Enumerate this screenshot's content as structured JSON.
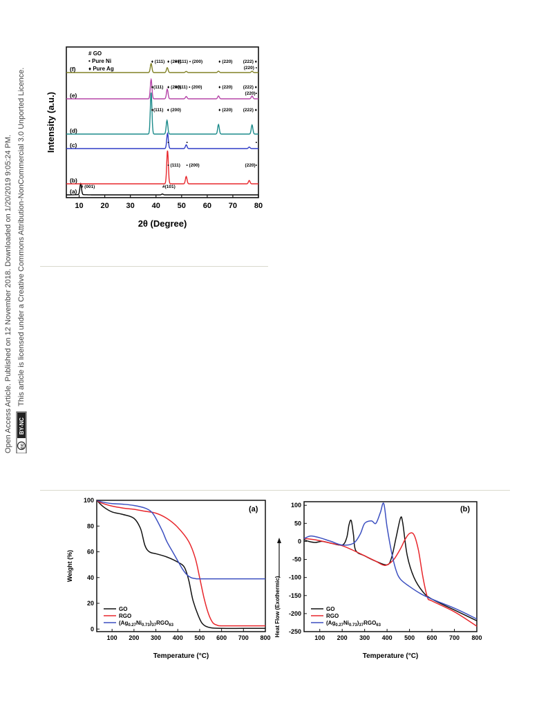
{
  "side_text": {
    "line1": "Open Access Article. Published on 12 November 2018. Downloaded on 1/20/2019 9:05:24 PM.",
    "line2": "This article is licensed under a Creative Commons Attribution-NonCommercial 3.0 Unported Licence.",
    "badge": "BY-NC"
  },
  "chart_data": [
    {
      "type": "line",
      "xlabel": "2θ (Degree)",
      "ylabel": "Intensity (a.u.)",
      "xlim": [
        5,
        80
      ],
      "xticks": [
        10,
        20,
        30,
        40,
        50,
        60,
        70,
        80
      ],
      "legend": [
        {
          "marker": "#",
          "label": "GO"
        },
        {
          "marker": "•",
          "label": "Pure Ni"
        },
        {
          "marker": "♦",
          "label": "Pure Ag"
        }
      ],
      "colors": {
        "a": "#000000",
        "b": "#e8262b",
        "c": "#2e3bc6",
        "d": "#1a8a8a",
        "e": "#b545a8",
        "f": "#808025"
      },
      "series": [
        {
          "name": "(a)",
          "peaks": [
            {
              "x": 10.6,
              "h": 1.0
            },
            {
              "x": 42.5,
              "h": 0.08
            }
          ],
          "labels": [
            {
              "text": "# (001)",
              "x": 10.6
            },
            {
              "text": "#(101)",
              "x": 42.5
            }
          ]
        },
        {
          "name": "(b)",
          "peaks": [
            {
              "x": 44.5,
              "h": 1.0
            },
            {
              "x": 51.8,
              "h": 0.22
            },
            {
              "x": 76.4,
              "h": 0.1
            }
          ],
          "labels": [
            {
              "text": "• (111)",
              "x": 44.5
            },
            {
              "text": "• (200)",
              "x": 51.8
            },
            {
              "text": "(220)•",
              "x": 76.4
            }
          ]
        },
        {
          "name": "(c)",
          "peaks": [
            {
              "x": 44.5,
              "h": 1.0
            },
            {
              "x": 51.8,
              "h": 0.25
            },
            {
              "x": 76.4,
              "h": 0.1
            }
          ],
          "labels": [
            {
              "text": "•",
              "x": 44.5
            },
            {
              "text": "•",
              "x": 51.8
            },
            {
              "text": "•",
              "x": 76.4
            }
          ]
        },
        {
          "name": "(d)",
          "peaks": [
            {
              "x": 38.1,
              "h": 1.0
            },
            {
              "x": 44.3,
              "h": 0.33
            },
            {
              "x": 64.4,
              "h": 0.23
            },
            {
              "x": 77.5,
              "h": 0.22
            }
          ],
          "labels": [
            {
              "text": "♦(111)",
              "x": 38.1
            },
            {
              "text": "♦ (200)",
              "x": 44.3
            },
            {
              "text": "♦ (220)",
              "x": 64.4
            },
            {
              "text": "(222) ♦",
              "x": 77.5
            }
          ]
        },
        {
          "name": "(e)",
          "peaks": [
            {
              "x": 38.1,
              "h": 1.0
            },
            {
              "x": 44.4,
              "h": 0.5
            },
            {
              "x": 51.8,
              "h": 0.12
            },
            {
              "x": 64.4,
              "h": 0.15
            },
            {
              "x": 77.5,
              "h": 0.15
            }
          ],
          "labels": [
            {
              "text": "♦(111)",
              "x": 38.1
            },
            {
              "text": "♦ (200)",
              "x": 44.4
            },
            {
              "text": "♦(111) • (200)",
              "x": 47.5
            },
            {
              "text": "♦ (220)",
              "x": 64.4
            },
            {
              "text": "(222) ♦",
              "x": 77.5
            },
            {
              "text": "(220)•",
              "x": 77.5
            }
          ]
        },
        {
          "name": "(f)",
          "peaks": [
            {
              "x": 38.1,
              "h": 1.0
            },
            {
              "x": 44.4,
              "h": 0.55
            },
            {
              "x": 51.8,
              "h": 0.13
            },
            {
              "x": 64.4,
              "h": 0.15
            },
            {
              "x": 77.5,
              "h": 0.15
            }
          ],
          "labels": [
            {
              "text": "♦ (111)",
              "x": 38.1
            },
            {
              "text": "♦ (200)",
              "x": 44.4
            },
            {
              "text": "• (111) • (200)",
              "x": 47.5
            },
            {
              "text": "♦ (220)",
              "x": 64.4
            },
            {
              "text": "(222) ♦",
              "x": 77.5
            },
            {
              "text": "(220) •",
              "x": 77.5
            }
          ]
        }
      ]
    },
    {
      "type": "line",
      "panel_label": "(a)",
      "xlabel": "Temperature (°C)",
      "ylabel": "Weight (%)",
      "xlim": [
        30,
        800
      ],
      "ylim": [
        -2,
        100
      ],
      "xticks": [
        100,
        200,
        300,
        400,
        500,
        600,
        700,
        800
      ],
      "yticks": [
        0,
        20,
        40,
        60,
        80,
        100
      ],
      "legend_position": "bottom-left",
      "series": [
        {
          "name": "GO",
          "color": "#111111",
          "x": [
            30,
            60,
            100,
            150,
            200,
            230,
            250,
            270,
            300,
            350,
            400,
            430,
            450,
            470,
            500,
            520,
            550,
            600,
            700,
            800
          ],
          "y": [
            100,
            95,
            91,
            89,
            86,
            78,
            65,
            60,
            58.5,
            56,
            52,
            48,
            38,
            22,
            8,
            3,
            1,
            0.5,
            0.5,
            0.5
          ]
        },
        {
          "name": "RGO",
          "color": "#e8262b",
          "x": [
            30,
            50,
            100,
            150,
            200,
            250,
            300,
            350,
            400,
            450,
            480,
            500,
            520,
            540,
            560,
            580,
            600,
            700,
            800
          ],
          "y": [
            100,
            98,
            95.5,
            94,
            93,
            91.5,
            90,
            86,
            79,
            68,
            55,
            40,
            24,
            12,
            5,
            3,
            2.5,
            2.5,
            2.5
          ]
        },
        {
          "name": "(Ag0.27Ni0.73)37RGO63",
          "color": "#3b4fc0",
          "x": [
            30,
            60,
            100,
            150,
            200,
            250,
            280,
            300,
            330,
            350,
            380,
            400,
            420,
            440,
            460,
            480,
            500,
            600,
            700,
            800
          ],
          "y": [
            100,
            98.5,
            97.5,
            97,
            96,
            94,
            91,
            86,
            76,
            68,
            59,
            53,
            47,
            42.5,
            40,
            39.2,
            39,
            39,
            39,
            39
          ]
        }
      ],
      "legend_labels": {
        "l1": "GO",
        "l2": "RGO",
        "l3_base": "(Ag",
        "l3_s1": "0.27",
        "l3_mid": "Ni",
        "l3_s2": "0.73",
        "l3_close": ")",
        "l3_s3": "37",
        "l3_rgo": "RGO",
        "l3_s4": "63"
      }
    },
    {
      "type": "line",
      "panel_label": "(b)",
      "xlabel": "Temperature (°C)",
      "ylabel": "Heat Flow (Exothermic)",
      "xlim": [
        30,
        800
      ],
      "ylim": [
        -250,
        110
      ],
      "xticks": [
        100,
        200,
        300,
        400,
        500,
        600,
        700,
        800
      ],
      "yticks": [
        100,
        50,
        0,
        -50,
        -100,
        -150,
        -200,
        -250
      ],
      "legend_position": "bottom-left",
      "series": [
        {
          "name": "GO",
          "color": "#111111",
          "x": [
            30,
            50,
            80,
            110,
            150,
            200,
            220,
            230,
            240,
            250,
            260,
            300,
            350,
            400,
            420,
            440,
            460,
            470,
            490,
            520,
            560,
            600,
            700,
            800
          ],
          "y": [
            5,
            0,
            -3,
            0,
            -5,
            -10,
            10,
            45,
            58,
            20,
            -25,
            -40,
            -55,
            -65,
            -45,
            10,
            65,
            50,
            -40,
            -100,
            -140,
            -160,
            -190,
            -220
          ]
        },
        {
          "name": "RGO",
          "color": "#e8262b",
          "x": [
            30,
            60,
            100,
            150,
            200,
            250,
            300,
            350,
            380,
            400,
            430,
            460,
            480,
            500,
            520,
            540,
            560,
            580,
            600,
            700,
            800
          ],
          "y": [
            8,
            6,
            2,
            -5,
            -12,
            -25,
            -40,
            -55,
            -65,
            -65,
            -50,
            -20,
            5,
            22,
            18,
            -25,
            -100,
            -155,
            -165,
            -195,
            -235
          ]
        },
        {
          "name": "(Ag0.27Ni0.73)37RGO63",
          "color": "#3b4fc0",
          "x": [
            30,
            60,
            100,
            150,
            200,
            250,
            280,
            300,
            330,
            350,
            370,
            385,
            400,
            420,
            440,
            460,
            500,
            550,
            600,
            700,
            800
          ],
          "y": [
            8,
            15,
            10,
            0,
            -10,
            -5,
            20,
            50,
            57,
            50,
            80,
            105,
            40,
            -30,
            -80,
            -105,
            -125,
            -145,
            -160,
            -185,
            -215
          ]
        }
      ],
      "legend_labels": {
        "l1": "GO",
        "l2": "RGO",
        "l3_base": "(Ag",
        "l3_s1": "0.27",
        "l3_mid": "Ni",
        "l3_s2": "0.73",
        "l3_close": ")",
        "l3_s3": "37",
        "l3_rgo": "RGO",
        "l3_s4": "63"
      }
    }
  ]
}
